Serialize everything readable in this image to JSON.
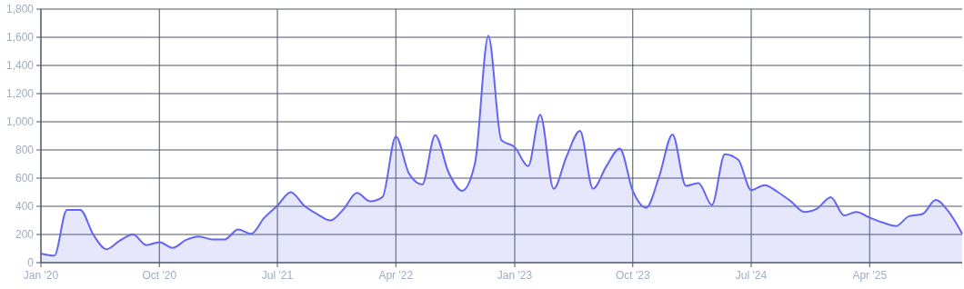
{
  "chart_data": {
    "type": "area",
    "x": [
      "2020-01",
      "2020-02",
      "2020-03",
      "2020-04",
      "2020-05",
      "2020-06",
      "2020-07",
      "2020-08",
      "2020-09",
      "2020-10",
      "2020-11",
      "2020-12",
      "2021-01",
      "2021-02",
      "2021-03",
      "2021-04",
      "2021-05",
      "2021-06",
      "2021-07",
      "2021-08",
      "2021-09",
      "2021-10",
      "2021-11",
      "2021-12",
      "2022-01",
      "2022-02",
      "2022-03",
      "2022-04",
      "2022-05",
      "2022-06",
      "2022-07",
      "2022-08",
      "2022-09",
      "2022-10",
      "2022-11",
      "2022-12",
      "2023-01",
      "2023-02",
      "2023-03",
      "2023-04",
      "2023-05",
      "2023-06",
      "2023-07",
      "2023-08",
      "2023-09",
      "2023-10",
      "2023-11",
      "2023-12",
      "2024-01",
      "2024-02",
      "2024-03",
      "2024-04",
      "2024-05",
      "2024-06",
      "2024-07",
      "2024-08",
      "2024-09",
      "2024-10",
      "2024-11",
      "2024-12",
      "2025-01",
      "2025-02",
      "2025-03",
      "2025-04",
      "2025-05",
      "2025-06",
      "2025-07",
      "2025-08",
      "2025-09",
      "2025-10",
      "2025-11"
    ],
    "series": [
      {
        "color": "#6366f1",
        "values": [
          65,
          50,
          375,
          375,
          200,
          95,
          155,
          200,
          125,
          145,
          105,
          160,
          185,
          165,
          165,
          235,
          205,
          320,
          405,
          500,
          405,
          345,
          300,
          380,
          495,
          435,
          465,
          895,
          635,
          555,
          905,
          640,
          510,
          705,
          1610,
          870,
          820,
          685,
          1050,
          525,
          755,
          935,
          525,
          685,
          810,
          510,
          390,
          610,
          910,
          545,
          565,
          410,
          770,
          730,
          515,
          550,
          500,
          435,
          360,
          385,
          465,
          335,
          360,
          320,
          285,
          260,
          330,
          345,
          445,
          360,
          205
        ]
      }
    ],
    "xlim": [
      "2020-01",
      "2025-11"
    ],
    "xticks": [
      {
        "value": "2020-01",
        "label": "Jan '20"
      },
      {
        "value": "2020-10",
        "label": "Oct '20"
      },
      {
        "value": "2021-07",
        "label": "Jul '21"
      },
      {
        "value": "2022-04",
        "label": "Apr '22"
      },
      {
        "value": "2023-01",
        "label": "Jan '23"
      },
      {
        "value": "2023-10",
        "label": "Oct '23"
      },
      {
        "value": "2024-07",
        "label": "Jul '24"
      },
      {
        "value": "2025-04",
        "label": "Apr '25"
      }
    ],
    "ylim": [
      0,
      1800
    ],
    "yticks": [
      {
        "value": 0,
        "label": "0"
      },
      {
        "value": 200,
        "label": "200"
      },
      {
        "value": 400,
        "label": "400"
      },
      {
        "value": 600,
        "label": "600"
      },
      {
        "value": 800,
        "label": "800"
      },
      {
        "value": 1000,
        "label": "1,000"
      },
      {
        "value": 1200,
        "label": "1,200"
      },
      {
        "value": 1400,
        "label": "1,400"
      },
      {
        "value": 1600,
        "label": "1,600"
      },
      {
        "value": 1800,
        "label": "1,800"
      }
    ],
    "grid": true
  }
}
